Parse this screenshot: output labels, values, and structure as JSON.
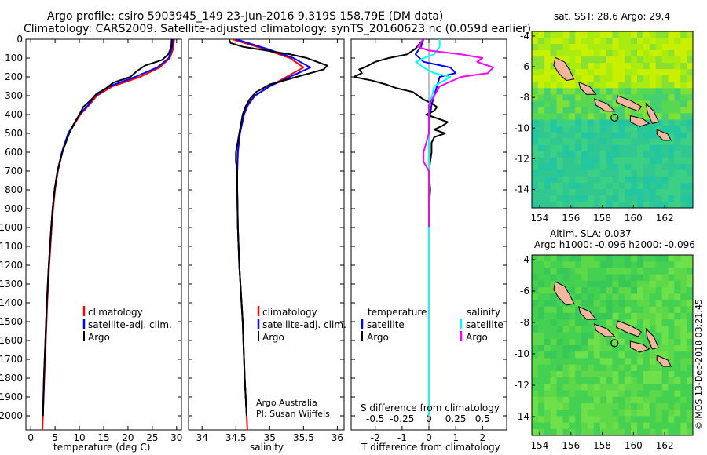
{
  "header": {
    "line1": "Argo profile: csiro 5903945_149 23-Jun-2016 9.319S 158.79E (DM data)",
    "line2": "Climatology: CARS2009. Satellite-adjusted climatology: synTS_20160623.nc (0.059d earlier)"
  },
  "colors": {
    "climatology": "#ff0000",
    "satellite": "#0000ff",
    "argo": "#000000",
    "sat_salinity": "#00ffff",
    "argo_salinity": "#ff00ff"
  },
  "chart_data": [
    {
      "type": "line",
      "panel": "temperature",
      "xlabel": "temperature (deg C)",
      "xlim": [
        -1,
        31
      ],
      "xticks": [
        0,
        5,
        10,
        15,
        20,
        25,
        30
      ],
      "ylim": [
        0,
        2075
      ],
      "yticks": [
        0,
        100,
        200,
        300,
        400,
        500,
        600,
        700,
        800,
        900,
        1000,
        1100,
        1200,
        1300,
        1400,
        1500,
        1600,
        1700,
        1800,
        1900,
        2000
      ],
      "legend": [
        "climatology",
        "satellite-adj. clim.",
        "Argo"
      ],
      "series": [
        {
          "name": "climatology",
          "color": "#ff0000",
          "depth": [
            0,
            50,
            100,
            150,
            200,
            250,
            300,
            350,
            400,
            500,
            600,
            700,
            800,
            900,
            1000,
            1200,
            1400,
            1600,
            1800,
            2000,
            2075
          ],
          "values": [
            29.5,
            29.3,
            28.6,
            26.5,
            22.5,
            16.8,
            13.6,
            12,
            10.2,
            7.8,
            6.5,
            5.6,
            5.0,
            4.6,
            4.3,
            3.8,
            3.4,
            3.1,
            2.8,
            2.5,
            2.4
          ]
        },
        {
          "name": "satellite-adj. clim.",
          "color": "#0000ff",
          "depth": [
            0,
            50,
            100,
            150,
            200,
            250,
            300,
            350,
            400,
            500,
            600,
            700,
            800,
            900,
            1000,
            1200,
            1400,
            1600,
            1800,
            2000
          ],
          "values": [
            29.3,
            29.0,
            28.4,
            26.0,
            21.5,
            16.2,
            13.2,
            11.8,
            10.0,
            7.7,
            6.4,
            5.5,
            4.9,
            4.5,
            4.2,
            3.7,
            3.3,
            3.0,
            2.7,
            2.5
          ]
        },
        {
          "name": "Argo",
          "color": "#000000",
          "depth": [
            0,
            40,
            80,
            110,
            140,
            170,
            200,
            230,
            260,
            290,
            320,
            360,
            400,
            450,
            500,
            600,
            700,
            800,
            900,
            1000,
            1200,
            1400,
            1600,
            1800,
            2000
          ],
          "values": [
            29.0,
            28.9,
            28.3,
            27.0,
            23.5,
            21.8,
            20.5,
            17.0,
            15.5,
            13.5,
            12.5,
            10.8,
            10.0,
            8.9,
            7.9,
            6.5,
            5.5,
            4.9,
            4.5,
            4.2,
            3.7,
            3.3,
            3.0,
            2.7,
            2.5
          ]
        }
      ]
    },
    {
      "type": "line",
      "panel": "salinity",
      "xlabel": "salinity",
      "xlim": [
        33.8,
        36.1
      ],
      "xticks": [
        34,
        34.5,
        35,
        35.5,
        36
      ],
      "xticklabels": [
        "34",
        "34.5",
        "35",
        "35.5",
        "36"
      ],
      "ylim": [
        0,
        2075
      ],
      "legend": [
        "climatology",
        "satellite-adj. clim.",
        "Argo"
      ],
      "annotation": [
        "Argo Australia",
        "PI: Susan Wijffels"
      ],
      "series": [
        {
          "name": "climatology",
          "color": "#ff0000",
          "depth": [
            0,
            50,
            100,
            150,
            200,
            250,
            300,
            350,
            400,
            500,
            600,
            700,
            800,
            1000,
            1200,
            1500,
            1800,
            2000,
            2075
          ],
          "values": [
            34.45,
            34.9,
            35.3,
            35.5,
            35.25,
            35.0,
            34.78,
            34.68,
            34.62,
            34.56,
            34.53,
            34.52,
            34.52,
            34.53,
            34.55,
            34.6,
            34.63,
            34.66,
            34.67
          ]
        },
        {
          "name": "satellite-adj. clim.",
          "color": "#0000ff",
          "depth": [
            0,
            50,
            100,
            150,
            200,
            250,
            300,
            350,
            400,
            500,
            600,
            700,
            800,
            1000,
            1200,
            1500,
            1800,
            2000
          ],
          "values": [
            34.5,
            34.95,
            35.35,
            35.6,
            35.3,
            35.0,
            34.78,
            34.67,
            34.62,
            34.56,
            34.53,
            34.52,
            34.52,
            34.53,
            34.55,
            34.6,
            34.63,
            34.66
          ]
        },
        {
          "name": "Argo",
          "color": "#000000",
          "depth": [
            0,
            20,
            40,
            60,
            80,
            100,
            120,
            140,
            160,
            180,
            200,
            240,
            280,
            320,
            360,
            400,
            500,
            600,
            650,
            700,
            800,
            1000,
            1200,
            1500,
            1800,
            2000
          ],
          "values": [
            34.4,
            34.42,
            34.6,
            34.95,
            35.3,
            35.55,
            35.7,
            35.85,
            35.8,
            35.6,
            35.4,
            35.0,
            34.8,
            34.7,
            34.64,
            34.6,
            34.55,
            34.5,
            34.5,
            34.52,
            34.52,
            34.53,
            34.55,
            34.6,
            34.63,
            34.66
          ]
        }
      ]
    },
    {
      "type": "line",
      "panel": "difference",
      "xlabel": "T difference from climatology",
      "xlabel_top": "S difference from climatology",
      "xlim": [
        -2.9,
        2.9
      ],
      "xticks": [
        -2,
        -1,
        0,
        1,
        2
      ],
      "top_xticks": [
        -0.5,
        -0.25,
        0,
        0.25,
        0.5
      ],
      "top_xticklabels": [
        "-0.5",
        "-0.25",
        "0",
        "0.25",
        "0.5"
      ],
      "ylim": [
        0,
        2075
      ],
      "legend_temperature": {
        "title": "temperature",
        "items": [
          "satellite",
          "Argo"
        ]
      },
      "legend_salinity": {
        "title": "salinity",
        "items": [
          "satellite",
          "Argo"
        ]
      },
      "series": [
        {
          "name": "temperature satellite",
          "color": "#0000ff",
          "depth": [
            0,
            40,
            80,
            120,
            150,
            180,
            200,
            250,
            300,
            350,
            400,
            450,
            500,
            600,
            800,
            1000,
            1400,
            1800,
            2000
          ],
          "values": [
            -0.2,
            -0.3,
            -0.5,
            -0.2,
            0.8,
            1.0,
            0.4,
            0.3,
            0.2,
            0.1,
            0.05,
            0.0,
            0.02,
            0.0,
            0.0,
            0.0,
            0.0,
            0.0,
            0.0
          ]
        },
        {
          "name": "temperature Argo",
          "color": "#000000",
          "depth": [
            0,
            50,
            80,
            100,
            120,
            150,
            160,
            180,
            200,
            220,
            240,
            260,
            280,
            300,
            320,
            340,
            360,
            380,
            400,
            420,
            440,
            460,
            480,
            500,
            520,
            550,
            600,
            650,
            700,
            800,
            900,
            1000,
            1200,
            1400,
            1600,
            1800,
            2000
          ],
          "values": [
            -0.2,
            -0.5,
            -0.8,
            -1.5,
            -2.0,
            -2.4,
            -2.6,
            -2.5,
            -2.8,
            -2.1,
            -1.6,
            -1.2,
            -0.6,
            -0.4,
            -0.2,
            0.1,
            0.3,
            0.2,
            -0.1,
            0.3,
            0.7,
            0.5,
            0.2,
            0.6,
            0.2,
            0.1,
            0.1,
            0.05,
            0.0,
            0.05,
            0.0,
            0.0,
            0.0,
            0.0,
            0.0,
            0.0,
            0.0
          ]
        },
        {
          "name": "salinity satellite",
          "color": "#00ffff",
          "depth": [
            0,
            40,
            80,
            100,
            120,
            150,
            180,
            200,
            250,
            300,
            350,
            400,
            450,
            500,
            600,
            800,
            1000,
            1400,
            1800,
            2000
          ],
          "values": [
            0.1,
            0.1,
            0.05,
            -0.05,
            -0.12,
            -0.05,
            0.05,
            0.2,
            0.05,
            0.03,
            0.0,
            0.0,
            0.0,
            0.0,
            0.0,
            0.0,
            0.0,
            0.0,
            0.0,
            0.0
          ]
        },
        {
          "name": "salinity Argo",
          "color": "#ff00ff",
          "depth": [
            0,
            40,
            60,
            80,
            100,
            120,
            150,
            180,
            200,
            250,
            300,
            350,
            400,
            500,
            600,
            650,
            700,
            800,
            900,
            1000
          ],
          "values": [
            -0.05,
            -0.1,
            0.0,
            0.3,
            0.5,
            0.45,
            0.6,
            0.55,
            0.3,
            0.1,
            0.05,
            0.0,
            0.0,
            0.0,
            -0.05,
            -0.05,
            0.0,
            0.0,
            0.0,
            0.0
          ]
        }
      ]
    },
    {
      "type": "heatmap",
      "panel": "sst_map",
      "title": "sat. SST: 28.6 Argo: 29.4",
      "xlim": [
        153.5,
        163.8
      ],
      "ylim": [
        -15.2,
        -3.7
      ],
      "xticks": [
        154,
        156,
        158,
        160,
        162
      ],
      "yticks": [
        -4,
        -6,
        -8,
        -10,
        -12,
        -14
      ],
      "float_lon": 158.79,
      "float_lat": -9.319
    },
    {
      "type": "heatmap",
      "panel": "sla_map",
      "title": "Altim. SLA: 0.037",
      "subtitle": "Argo h1000: -0.096 h2000: -0.096",
      "xlim": [
        153.5,
        163.8
      ],
      "ylim": [
        -15.2,
        -3.7
      ],
      "xticks": [
        154,
        156,
        158,
        160,
        162
      ],
      "yticks": [
        -4,
        -6,
        -8,
        -10,
        -12,
        -14
      ],
      "float_lon": 158.79,
      "float_lat": -9.319
    }
  ],
  "watermark": "©IMOS 13-Dec-2018 03:21:45"
}
